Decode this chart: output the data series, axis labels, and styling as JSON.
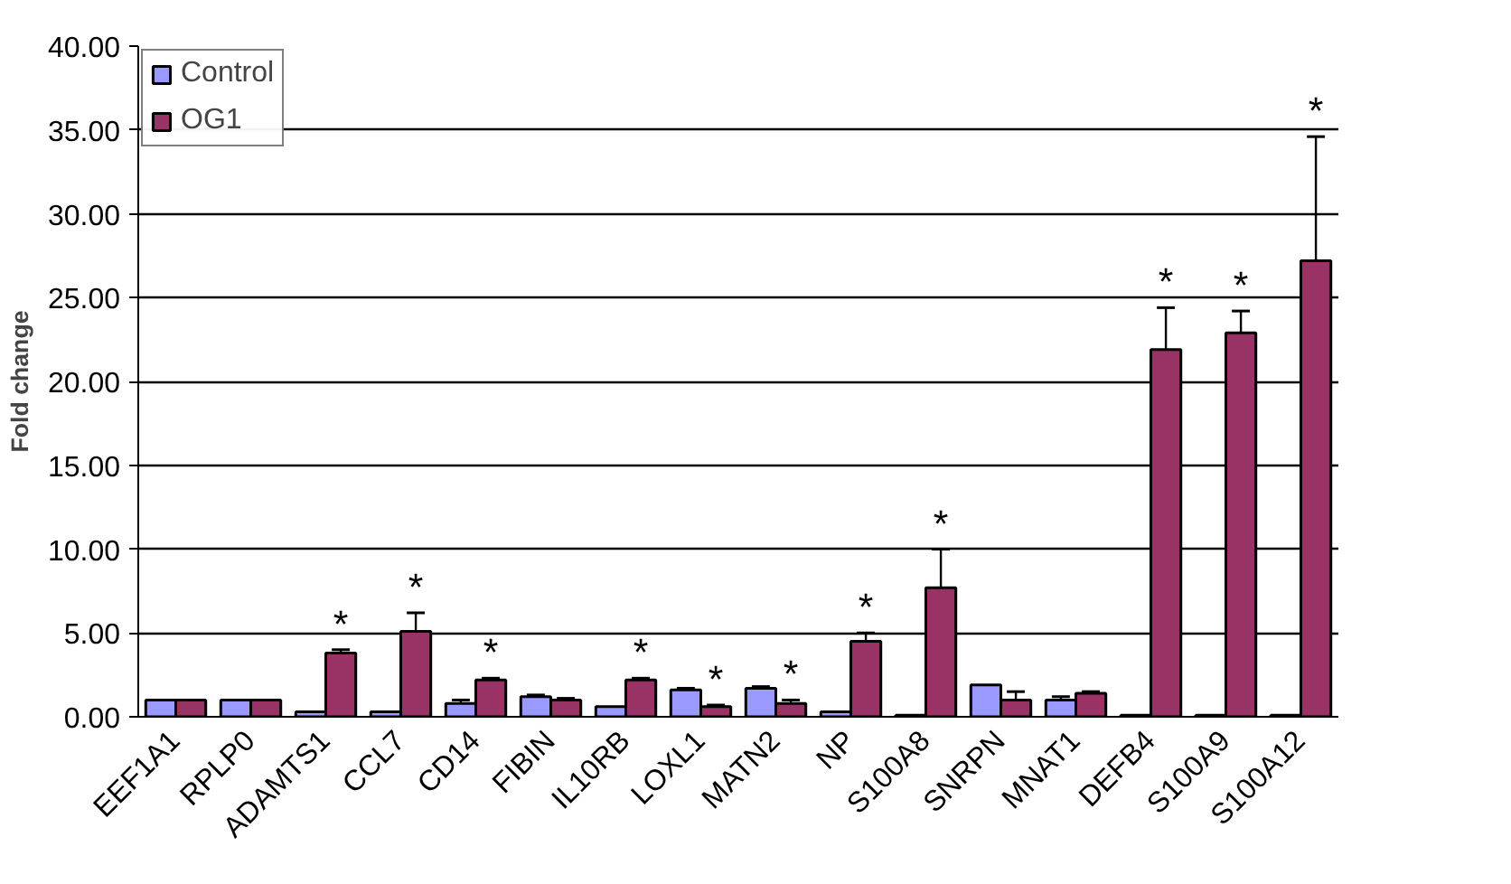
{
  "chart_data": {
    "type": "bar",
    "ylabel": "Fold change",
    "categories": [
      "EEF1A1",
      "RPLP0",
      "ADAMTS1",
      "CCL7",
      "CD14",
      "FIBIN",
      "IL10RB",
      "LOXL1",
      "MATN2",
      "NP",
      "S100A8",
      "SNRPN",
      "MNAT1",
      "DEFB4",
      "S100A9",
      "S100A12"
    ],
    "series": [
      {
        "name": "Control",
        "color": "#9999ff",
        "values": [
          1.0,
          1.0,
          0.3,
          0.3,
          0.8,
          1.2,
          0.6,
          1.6,
          1.7,
          0.3,
          0.1,
          1.9,
          1.0,
          0.1,
          0.1,
          0.1
        ],
        "errors": [
          null,
          null,
          null,
          null,
          0.2,
          0.1,
          null,
          0.1,
          0.1,
          null,
          null,
          null,
          0.2,
          null,
          null,
          null
        ]
      },
      {
        "name": "OG1",
        "color": "#993366",
        "values": [
          1.0,
          1.0,
          3.8,
          5.1,
          2.2,
          1.0,
          2.2,
          0.6,
          0.8,
          4.5,
          7.7,
          1.0,
          1.4,
          21.9,
          22.9,
          27.2
        ],
        "errors": [
          null,
          null,
          0.2,
          1.1,
          0.1,
          0.1,
          0.1,
          0.1,
          0.2,
          0.5,
          2.3,
          0.5,
          0.1,
          2.5,
          1.3,
          7.4
        ]
      }
    ],
    "ylim": [
      0,
      40
    ],
    "yticks": [
      {
        "value": 0,
        "label": "0.00"
      },
      {
        "value": 5,
        "label": "5.00"
      },
      {
        "value": 10,
        "label": "10.00"
      },
      {
        "value": 15,
        "label": "15.00"
      },
      {
        "value": 20,
        "label": "20.00"
      },
      {
        "value": 25,
        "label": "25.00"
      },
      {
        "value": 30,
        "label": "30.00"
      },
      {
        "value": 35,
        "label": "35.00"
      },
      {
        "value": 40,
        "label": "40.00"
      }
    ],
    "grid": "y",
    "legend": "top left",
    "annotations": [
      {
        "text": "*",
        "x": "ADAMTS1",
        "y": 4.0
      },
      {
        "text": "*",
        "x": "CCL7",
        "y": 6.2
      },
      {
        "text": "*",
        "x": "CD14",
        "y": 2.3
      },
      {
        "text": "*",
        "x": "IL10RB",
        "y": 2.3
      },
      {
        "text": "*",
        "x": "LOXL1",
        "y": 0.7
      },
      {
        "text": "*",
        "x": "MATN2",
        "y": 1.0
      },
      {
        "text": "*",
        "x": "NP",
        "y": 5.0
      },
      {
        "text": "*",
        "x": "S100A8",
        "y": 10.0
      },
      {
        "text": "*",
        "x": "DEFB4",
        "y": 24.4
      },
      {
        "text": "*",
        "x": "S100A9",
        "y": 24.2
      },
      {
        "text": "*",
        "x": "S100A12",
        "y": 34.6
      }
    ]
  }
}
